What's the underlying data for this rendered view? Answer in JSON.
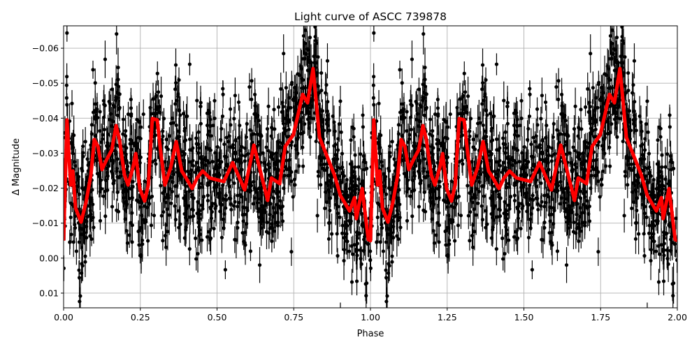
{
  "chart_data": {
    "type": "scatter",
    "title": "Light curve of ASCC 739878",
    "xlabel": "Phase",
    "ylabel": "Δ Magnitude",
    "xlim": [
      0,
      2.0
    ],
    "ylim": [
      0.0142,
      -0.0664
    ],
    "y_inverted": true,
    "grid": true,
    "x_ticks": [
      "0.00",
      "0.25",
      "0.50",
      "0.75",
      "1.00",
      "1.25",
      "1.50",
      "1.75",
      "2.00"
    ],
    "x_tick_values": [
      0,
      0.25,
      0.5,
      0.75,
      1.0,
      1.25,
      1.5,
      1.75,
      2.0
    ],
    "y_ticks": [
      "−0.06",
      "−0.05",
      "−0.04",
      "−0.03",
      "−0.02",
      "−0.01",
      "0.00",
      "0.01"
    ],
    "y_tick_values": [
      -0.06,
      -0.05,
      -0.04,
      -0.03,
      -0.02,
      -0.01,
      0.0,
      0.01
    ],
    "observations": {
      "marker": "errorbar points",
      "color": "#000000",
      "repeated_over_phase": [
        0,
        2
      ]
    },
    "model_curve": {
      "color": "#ff0000",
      "repeated_over_phase": [
        0,
        2
      ],
      "phase": [
        0,
        0.011,
        0.023,
        0.03,
        0.039,
        0.057,
        0.073,
        0.089,
        0.1,
        0.112,
        0.125,
        0.141,
        0.157,
        0.171,
        0.182,
        0.198,
        0.21,
        0.226,
        0.235,
        0.248,
        0.264,
        0.276,
        0.289,
        0.305,
        0.317,
        0.33,
        0.349,
        0.367,
        0.385,
        0.399,
        0.419,
        0.435,
        0.453,
        0.476,
        0.522,
        0.551,
        0.59,
        0.62,
        0.665,
        0.677,
        0.704,
        0.722,
        0.749,
        0.779,
        0.795,
        0.813,
        0.834,
        0.882,
        0.902,
        0.932,
        0.948,
        0.954,
        0.973,
        0.993,
        1.0
      ],
      "magnitude": [
        -0.005,
        -0.0395,
        -0.0209,
        -0.0249,
        -0.0143,
        -0.0103,
        -0.0159,
        -0.0239,
        -0.0339,
        -0.0319,
        -0.0253,
        -0.0283,
        -0.0309,
        -0.0379,
        -0.0339,
        -0.0239,
        -0.0209,
        -0.0259,
        -0.0299,
        -0.0199,
        -0.0163,
        -0.0209,
        -0.0399,
        -0.0395,
        -0.0299,
        -0.0209,
        -0.0259,
        -0.0333,
        -0.0249,
        -0.0229,
        -0.0199,
        -0.0229,
        -0.0249,
        -0.0229,
        -0.0219,
        -0.0273,
        -0.0195,
        -0.0323,
        -0.0165,
        -0.0229,
        -0.0213,
        -0.0319,
        -0.0353,
        -0.0468,
        -0.0444,
        -0.0542,
        -0.0345,
        -0.0239,
        -0.0179,
        -0.0135,
        -0.0173,
        -0.0113,
        -0.0199,
        -0.0053,
        -0.005
      ]
    }
  }
}
